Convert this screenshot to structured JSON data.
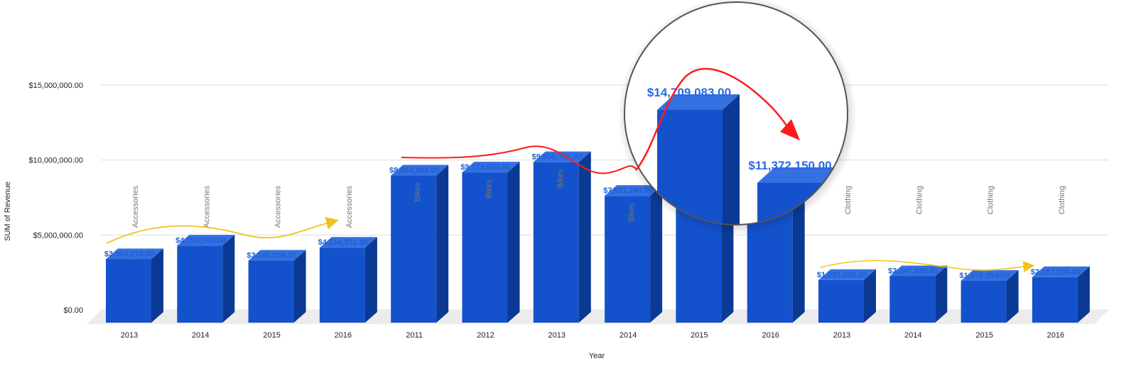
{
  "chart_data": {
    "type": "bar",
    "title": "",
    "xlabel": "Year",
    "ylabel": "SUM of Revenue",
    "ylim": [
      0,
      15000000
    ],
    "yticks": [
      "$0.00",
      "$5,000,000.00",
      "$10,000,000.00",
      "$15,000,000.00"
    ],
    "grid": true,
    "bar_color": "#1352cc",
    "highlight": {
      "arrow_color_accent": "#f2c31c",
      "arrow_color_alert": "#ff1a1a",
      "magnified_categories": [
        "Bikes 2015",
        "Bikes 2016"
      ]
    },
    "groups": [
      {
        "name": "Accessories",
        "years": [
          "2013",
          "2014",
          "2015",
          "2016"
        ],
        "values": [
          3384215,
          4293592,
          3285954,
          4154231
        ],
        "labels": [
          "$3,384,215.00",
          "$4,293,592.00",
          "$3,285,954.00",
          "$4,154,231.00"
        ]
      },
      {
        "name": "Bikes",
        "years": [
          "2011",
          "2012",
          "2013",
          "2014",
          "2015",
          "2016"
        ],
        "values": [
          8964888,
          9175983,
          9858787,
          7611243,
          14709083,
          11372150
        ],
        "labels": [
          "$8,964,888.00",
          "$9,175,983.00",
          "$9,858,787.00",
          "$7,611,243.00",
          "$14,709,083.00",
          "$11,372,150.00"
        ]
      },
      {
        "name": "Clothing",
        "years": [
          "2013",
          "2014",
          "2015",
          "2016"
        ],
        "values": [
          1997035,
          2247889,
          1938954,
          2187004
        ],
        "labels": [
          "$1,997,035.00",
          "$2,247,889.00",
          "$1,938,954.00",
          "$2,187,004.00"
        ]
      }
    ]
  }
}
